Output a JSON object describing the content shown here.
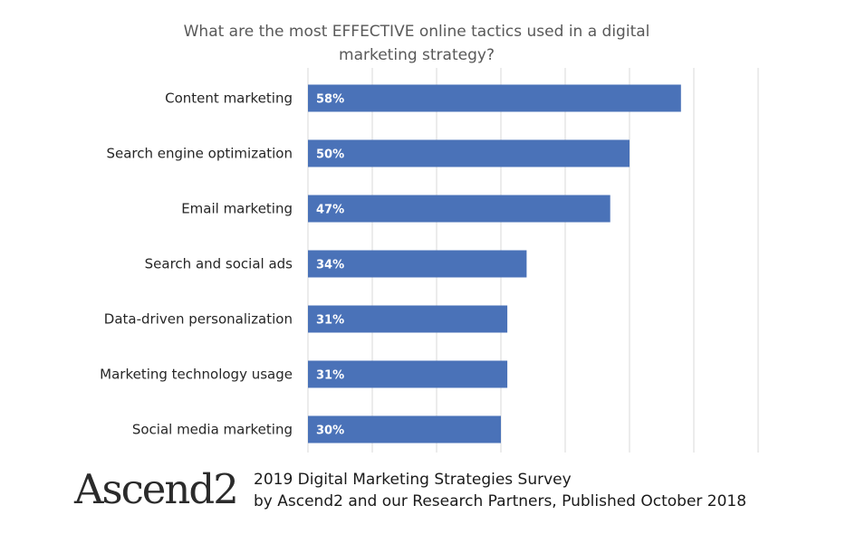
{
  "chart_data": {
    "type": "bar",
    "orientation": "horizontal",
    "title_lines": [
      "What are the most EFFECTIVE online tactics used in a digital",
      "marketing strategy?"
    ],
    "categories": [
      "Content marketing",
      "Search engine optimization",
      "Email marketing",
      "Search and social ads",
      "Data-driven personalization",
      "Marketing technology usage",
      "Social media marketing"
    ],
    "values": [
      58,
      50,
      47,
      34,
      31,
      31,
      30
    ],
    "value_labels": [
      "58%",
      "50%",
      "47%",
      "34%",
      "31%",
      "31%",
      "30%"
    ],
    "xlim": [
      0,
      70
    ],
    "gridlines_x": [
      0,
      10,
      20,
      30,
      40,
      50,
      60,
      70
    ],
    "grid": true,
    "legend": "none",
    "bar_color": "#4a72b8",
    "grid_color": "#d9d9d9"
  },
  "footer": {
    "logo_text": "Ascend2",
    "credit_line_1": "2019 Digital Marketing Strategies Survey",
    "credit_line_2": "by Ascend2 and our Research Partners, Published October 2018"
  }
}
